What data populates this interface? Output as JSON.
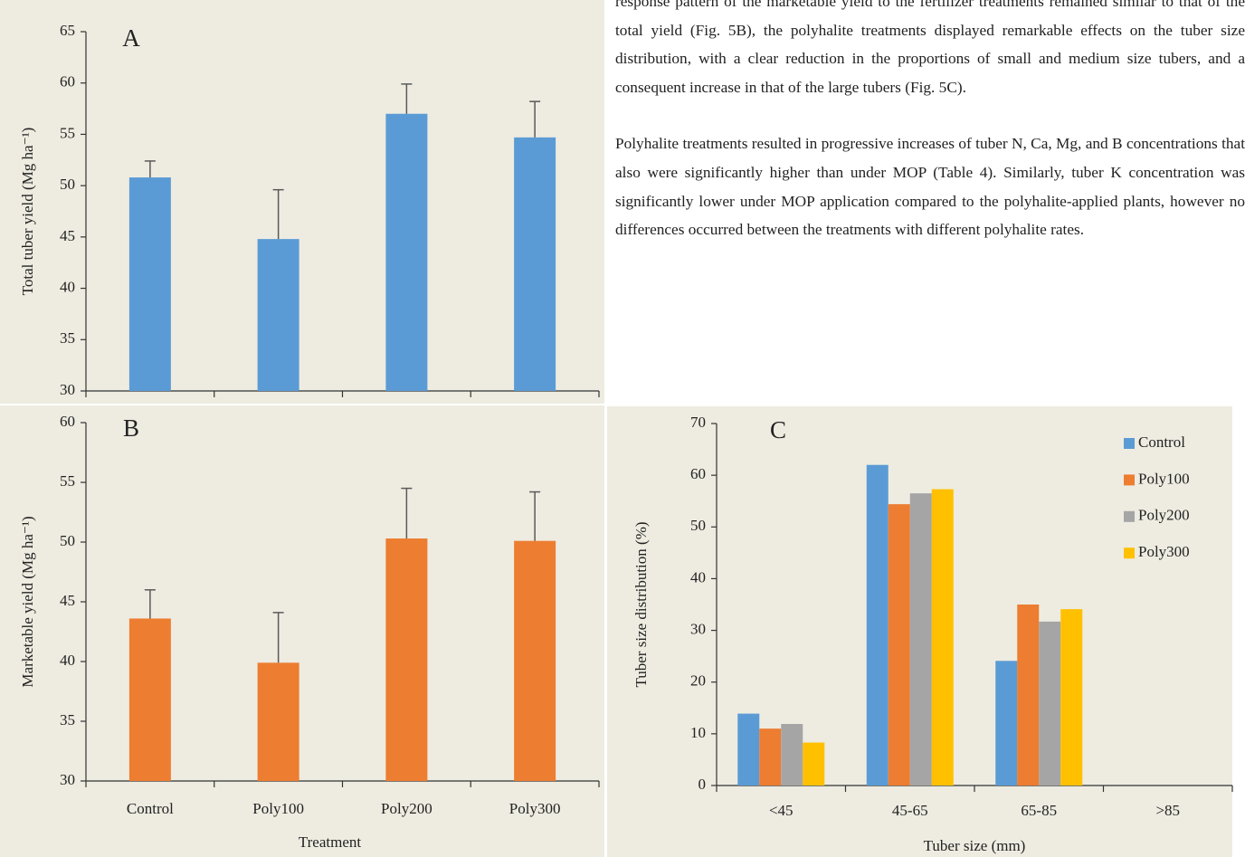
{
  "text": {
    "paragraphs": [
      "response pattern of the marketable yield to the fertilizer treatments remained similar to that of the total yield (Fig. 5B), the polyhalite treatments displayed remarkable effects on the tuber size distribution, with a clear reduction in the proportions of small and medium size tubers, and a consequent increase in that of the large tubers (Fig. 5C).",
      "Polyhalite treatments resulted in progressive increases of tuber N, Ca, Mg, and B concentrations that also were significantly higher than under MOP (Table 4). Similarly, tuber K concentration was significantly lower under MOP application compared to the polyhalite-applied plants, however no differences occurred between the treatments with different polyhalite rates."
    ]
  },
  "chart_data": [
    {
      "type": "bar",
      "panel_label": "A",
      "y_label": "Total tuber yield (Mg ha⁻¹)",
      "values": [
        50.8,
        44.8,
        57.0,
        54.7
      ],
      "errors": [
        1.6,
        4.8,
        2.9,
        3.5
      ],
      "color": "#5b9bd5",
      "ylim": [
        30,
        65
      ],
      "yticks": [
        30,
        35,
        40,
        45,
        50,
        55,
        60,
        65
      ]
    },
    {
      "type": "bar",
      "panel_label": "B",
      "y_label": "Marketable yield (Mg ha⁻¹)",
      "x_label": "Treatment",
      "categories": [
        "Control",
        "Poly100",
        "Poly200",
        "Poly300"
      ],
      "values": [
        43.6,
        39.9,
        50.3,
        50.1
      ],
      "errors": [
        2.4,
        4.2,
        4.2,
        4.1
      ],
      "color": "#ed7d31",
      "ylim": [
        30,
        60
      ],
      "yticks": [
        30,
        35,
        40,
        45,
        50,
        55,
        60
      ]
    },
    {
      "type": "grouped_bar",
      "panel_label": "C",
      "y_label": "Tuber size distribution (%)",
      "x_label": "Tuber size (mm)",
      "categories": [
        "<45",
        "45-65",
        "65-85",
        ">85"
      ],
      "series": [
        {
          "name": "Control",
          "color": "#5b9bd5",
          "values": [
            13.9,
            62.0,
            24.1,
            0
          ]
        },
        {
          "name": "Poly100",
          "color": "#ed7d31",
          "values": [
            11.0,
            54.4,
            35.0,
            0
          ]
        },
        {
          "name": "Poly200",
          "color": "#a5a5a5",
          "values": [
            11.9,
            56.5,
            31.7,
            0
          ]
        },
        {
          "name": "Poly300",
          "color": "#ffc000",
          "values": [
            8.3,
            57.3,
            34.1,
            0
          ]
        }
      ],
      "ylim": [
        0,
        70
      ],
      "yticks": [
        0,
        10,
        20,
        30,
        40,
        50,
        60,
        70
      ],
      "legend": "top-right"
    }
  ]
}
